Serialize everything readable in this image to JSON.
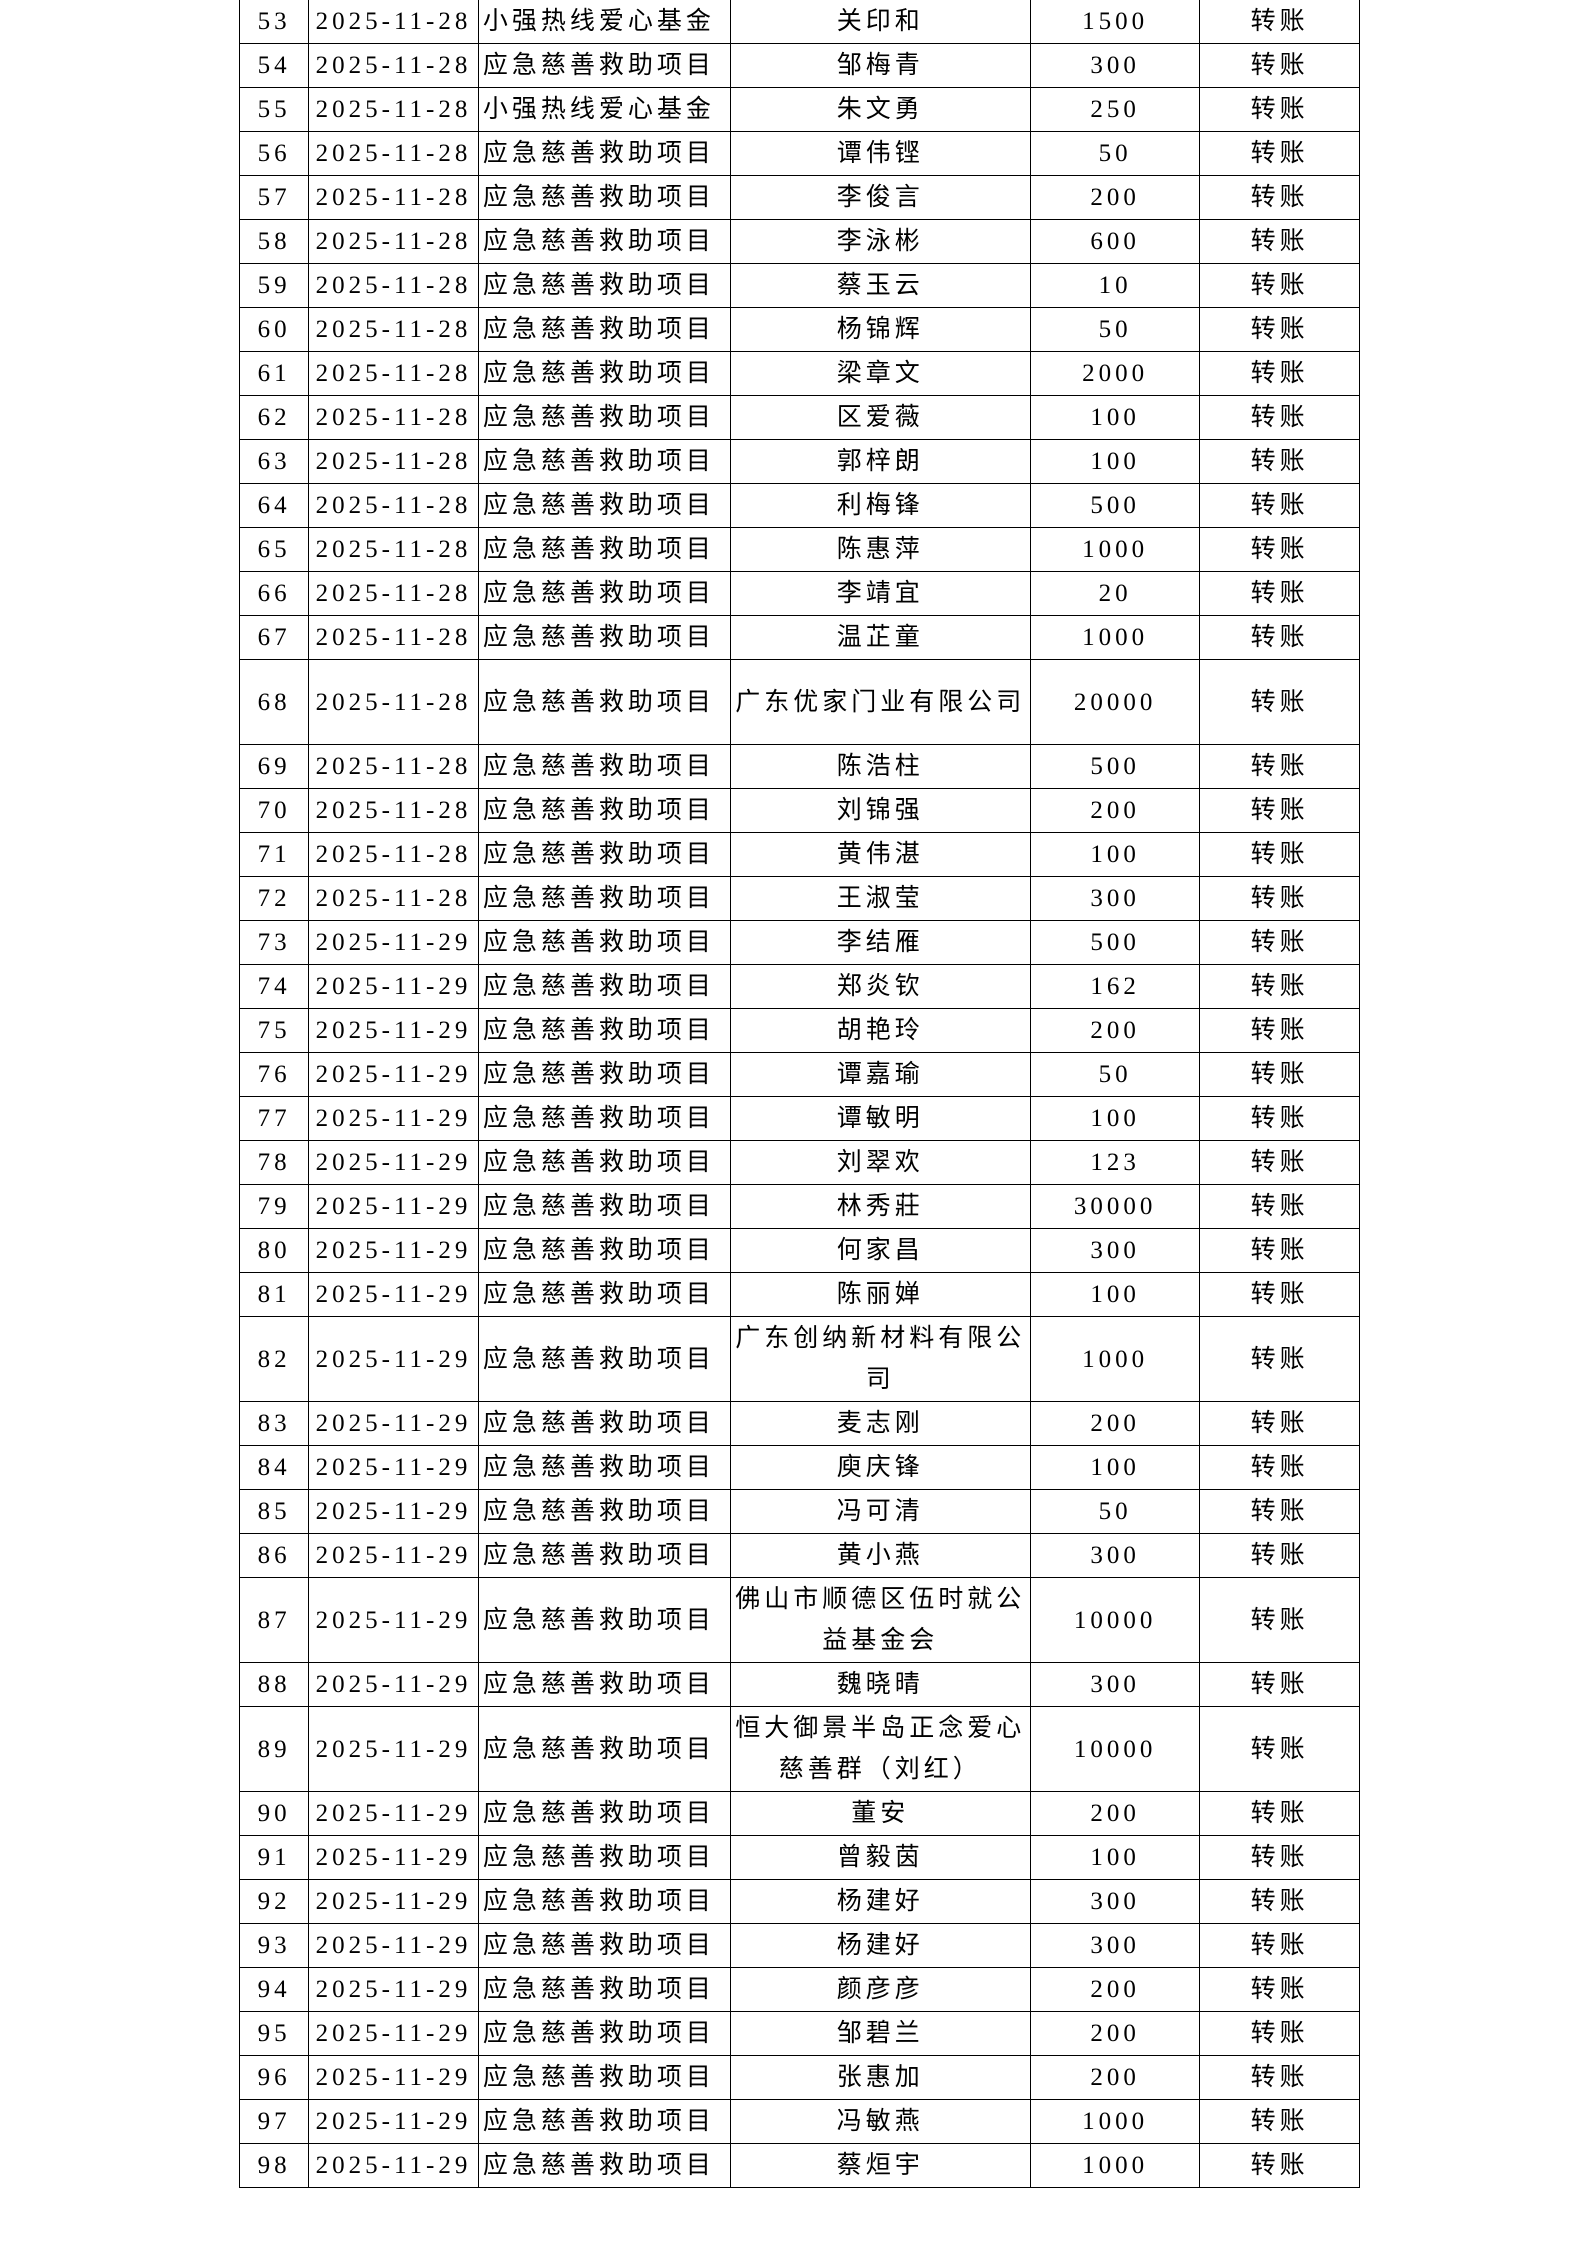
{
  "rows": [
    [
      "53",
      "2025-11-28",
      "小强热线爱心基金",
      "关印和",
      "1500",
      "转账"
    ],
    [
      "54",
      "2025-11-28",
      "应急慈善救助项目",
      "邹梅青",
      "300",
      "转账"
    ],
    [
      "55",
      "2025-11-28",
      "小强热线爱心基金",
      "朱文勇",
      "250",
      "转账"
    ],
    [
      "56",
      "2025-11-28",
      "应急慈善救助项目",
      "谭伟铿",
      "50",
      "转账"
    ],
    [
      "57",
      "2025-11-28",
      "应急慈善救助项目",
      "李俊言",
      "200",
      "转账"
    ],
    [
      "58",
      "2025-11-28",
      "应急慈善救助项目",
      "李泳彬",
      "600",
      "转账"
    ],
    [
      "59",
      "2025-11-28",
      "应急慈善救助项目",
      "蔡玉云",
      "10",
      "转账"
    ],
    [
      "60",
      "2025-11-28",
      "应急慈善救助项目",
      "杨锦辉",
      "50",
      "转账"
    ],
    [
      "61",
      "2025-11-28",
      "应急慈善救助项目",
      "梁章文",
      "2000",
      "转账"
    ],
    [
      "62",
      "2025-11-28",
      "应急慈善救助项目",
      "区爱薇",
      "100",
      "转账"
    ],
    [
      "63",
      "2025-11-28",
      "应急慈善救助项目",
      "郭梓朗",
      "100",
      "转账"
    ],
    [
      "64",
      "2025-11-28",
      "应急慈善救助项目",
      "利梅锋",
      "500",
      "转账"
    ],
    [
      "65",
      "2025-11-28",
      "应急慈善救助项目",
      "陈惠萍",
      "1000",
      "转账"
    ],
    [
      "66",
      "2025-11-28",
      "应急慈善救助项目",
      "李靖宜",
      "20",
      "转账"
    ],
    [
      "67",
      "2025-11-28",
      "应急慈善救助项目",
      "温芷童",
      "1000",
      "转账"
    ],
    [
      "68",
      "2025-11-28",
      "应急慈善救助项目",
      "广东优家门业有限公司",
      "20000",
      "转账"
    ],
    [
      "69",
      "2025-11-28",
      "应急慈善救助项目",
      "陈浩柱",
      "500",
      "转账"
    ],
    [
      "70",
      "2025-11-28",
      "应急慈善救助项目",
      "刘锦强",
      "200",
      "转账"
    ],
    [
      "71",
      "2025-11-28",
      "应急慈善救助项目",
      "黄伟湛",
      "100",
      "转账"
    ],
    [
      "72",
      "2025-11-28",
      "应急慈善救助项目",
      "王淑莹",
      "300",
      "转账"
    ],
    [
      "73",
      "2025-11-29",
      "应急慈善救助项目",
      "李结雁",
      "500",
      "转账"
    ],
    [
      "74",
      "2025-11-29",
      "应急慈善救助项目",
      "郑炎钦",
      "162",
      "转账"
    ],
    [
      "75",
      "2025-11-29",
      "应急慈善救助项目",
      "胡艳玲",
      "200",
      "转账"
    ],
    [
      "76",
      "2025-11-29",
      "应急慈善救助项目",
      "谭嘉瑜",
      "50",
      "转账"
    ],
    [
      "77",
      "2025-11-29",
      "应急慈善救助项目",
      "谭敏明",
      "100",
      "转账"
    ],
    [
      "78",
      "2025-11-29",
      "应急慈善救助项目",
      "刘翠欢",
      "123",
      "转账"
    ],
    [
      "79",
      "2025-11-29",
      "应急慈善救助项目",
      "林秀莊",
      "30000",
      "转账"
    ],
    [
      "80",
      "2025-11-29",
      "应急慈善救助项目",
      "何家昌",
      "300",
      "转账"
    ],
    [
      "81",
      "2025-11-29",
      "应急慈善救助项目",
      "陈丽婵",
      "100",
      "转账"
    ],
    [
      "82",
      "2025-11-29",
      "应急慈善救助项目",
      "广东创纳新材料有限公司",
      "1000",
      "转账"
    ],
    [
      "83",
      "2025-11-29",
      "应急慈善救助项目",
      "麦志刚",
      "200",
      "转账"
    ],
    [
      "84",
      "2025-11-29",
      "应急慈善救助项目",
      "庾庆锋",
      "100",
      "转账"
    ],
    [
      "85",
      "2025-11-29",
      "应急慈善救助项目",
      "冯可清",
      "50",
      "转账"
    ],
    [
      "86",
      "2025-11-29",
      "应急慈善救助项目",
      "黄小燕",
      "300",
      "转账"
    ],
    [
      "87",
      "2025-11-29",
      "应急慈善救助项目",
      "佛山市顺德区伍时就公益基金会",
      "10000",
      "转账"
    ],
    [
      "88",
      "2025-11-29",
      "应急慈善救助项目",
      "魏晓晴",
      "300",
      "转账"
    ],
    [
      "89",
      "2025-11-29",
      "应急慈善救助项目",
      "恒大御景半岛正念爱心慈善群（刘红）",
      "10000",
      "转账"
    ],
    [
      "90",
      "2025-11-29",
      "应急慈善救助项目",
      "董安",
      "200",
      "转账"
    ],
    [
      "91",
      "2025-11-29",
      "应急慈善救助项目",
      "曾毅茵",
      "100",
      "转账"
    ],
    [
      "92",
      "2025-11-29",
      "应急慈善救助项目",
      "杨建好",
      "300",
      "转账"
    ],
    [
      "93",
      "2025-11-29",
      "应急慈善救助项目",
      "杨建好",
      "300",
      "转账"
    ],
    [
      "94",
      "2025-11-29",
      "应急慈善救助项目",
      "颜彦彦",
      "200",
      "转账"
    ],
    [
      "95",
      "2025-11-29",
      "应急慈善救助项目",
      "邹碧兰",
      "200",
      "转账"
    ],
    [
      "96",
      "2025-11-29",
      "应急慈善救助项目",
      "张惠加",
      "200",
      "转账"
    ],
    [
      "97",
      "2025-11-29",
      "应急慈善救助项目",
      "冯敏燕",
      "1000",
      "转账"
    ],
    [
      "98",
      "2025-11-29",
      "应急慈善救助项目",
      "蔡烜宇",
      "1000",
      "转账"
    ]
  ]
}
